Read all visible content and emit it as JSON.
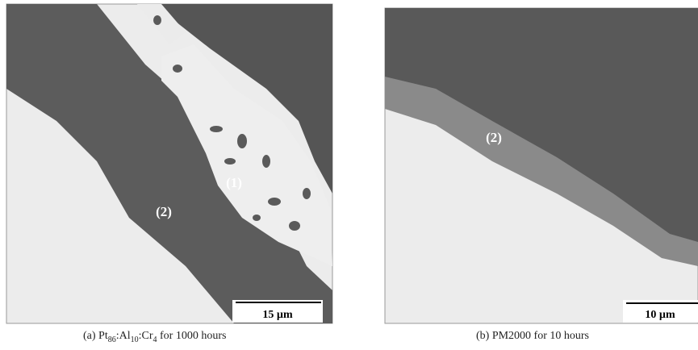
{
  "panel_a": {
    "labels": [
      "(1)",
      "(2)"
    ],
    "scale_bar": "15 µm",
    "caption": [
      "(a) Pt",
      "86",
      ":Al",
      "10",
      ":Cr",
      "4",
      " for 1000 hours"
    ]
  },
  "panel_b": {
    "labels": [
      "(2)"
    ],
    "scale_bar": "10 µm",
    "caption": [
      "(b) PM2000 for 10 hours"
    ]
  }
}
